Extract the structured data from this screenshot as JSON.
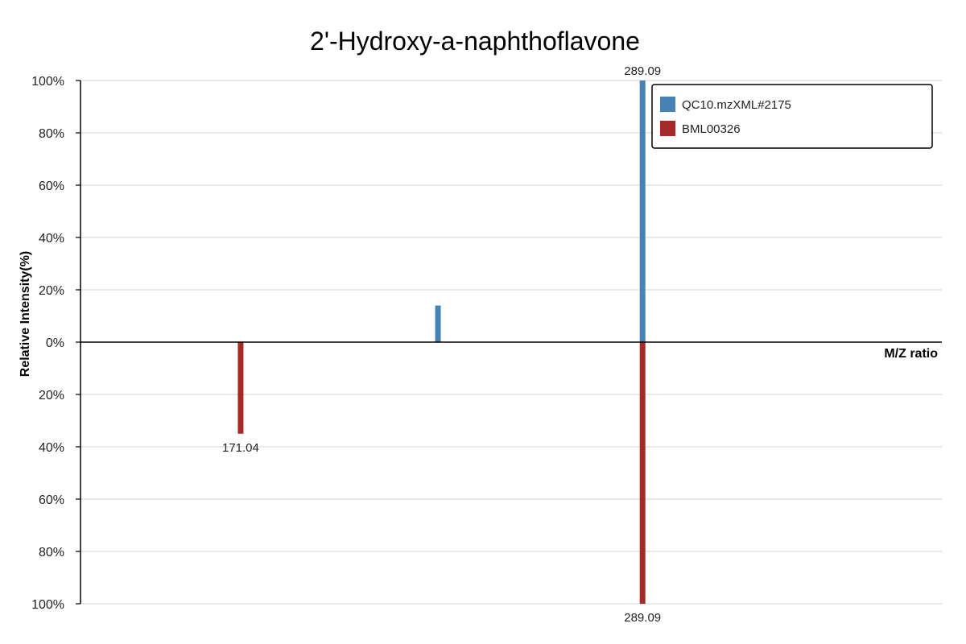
{
  "chart_data": {
    "type": "bar",
    "title": "2'-Hydroxy-a-naphthoflavone",
    "xlabel": "M/Z ratio",
    "ylabel": "Relative Intensity(%)",
    "ylim": [
      -100,
      100
    ],
    "y_ticks": [
      "100%",
      "80%",
      "60%",
      "40%",
      "20%",
      "0%",
      "20%",
      "40%",
      "60%",
      "80%",
      "100%"
    ],
    "grid": true,
    "legend_position": "top-right",
    "series": [
      {
        "name": "QC10.mzXML#2175",
        "color": "#4682b4",
        "direction": "up",
        "peaks": [
          {
            "mz": 229.0,
            "intensity": 14,
            "label": ""
          },
          {
            "mz": 289.09,
            "intensity": 100,
            "label": "289.09"
          }
        ]
      },
      {
        "name": "BML00326",
        "color": "#a52a2a",
        "direction": "down",
        "peaks": [
          {
            "mz": 171.04,
            "intensity": 35,
            "label": "171.04"
          },
          {
            "mz": 289.09,
            "intensity": 100,
            "label": "289.09"
          }
        ]
      }
    ],
    "x_range": [
      124.0,
      377.0
    ]
  }
}
